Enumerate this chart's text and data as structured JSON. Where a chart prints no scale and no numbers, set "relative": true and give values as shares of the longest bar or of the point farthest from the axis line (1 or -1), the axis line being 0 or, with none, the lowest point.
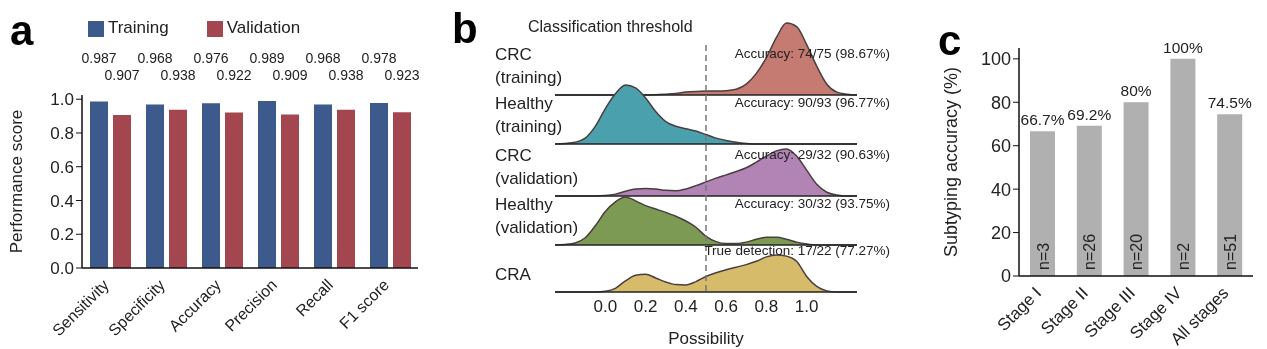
{
  "chart_data": [
    {
      "type": "bar",
      "title": "a",
      "categories": [
        "Sensitivity",
        "Specificity",
        "Accuracy",
        "Precision",
        "Recall",
        "F1 score"
      ],
      "series": [
        {
          "name": "Training",
          "color": "#3d5a8c",
          "values": [
            0.987,
            0.968,
            0.976,
            0.989,
            0.968,
            0.978
          ]
        },
        {
          "name": "Validation",
          "color": "#a3464f",
          "values": [
            0.907,
            0.938,
            0.922,
            0.909,
            0.938,
            0.923
          ]
        }
      ],
      "ylabel": "Performance score",
      "ylim": [
        0,
        1.025
      ],
      "yticks": [
        {
          "value": 0,
          "label": "0.0"
        },
        {
          "value": 0.2,
          "label": "0.2"
        },
        {
          "value": 0.4,
          "label": "0.4"
        },
        {
          "value": 0.6,
          "label": "0.6"
        },
        {
          "value": 0.8,
          "label": "0.8"
        },
        {
          "value": 1,
          "label": "1.0"
        }
      ],
      "data_labels": true,
      "legend": "top"
    },
    {
      "type": "area",
      "title": "b",
      "ylabel": "CRC (training)",
      "relative": true,
      "xlim": [
        -0.25,
        1.25
      ],
      "tick_labels": false,
      "annotations": [
        "Accuracy: 74/75 (98.67%)"
      ],
      "x": [
        -0.25,
        -0.2,
        -0.15,
        -0.1,
        -0.05,
        0,
        0.05,
        0.1,
        0.15,
        0.2,
        0.25,
        0.3,
        0.35,
        0.4,
        0.45,
        0.5,
        0.55,
        0.6,
        0.65,
        0.7,
        0.75,
        0.8,
        0.85,
        0.9,
        0.95,
        1,
        1.05,
        1.1,
        1.15,
        1.2,
        1.25
      ],
      "series": [
        {
          "color": "#c67b72",
          "values": [
            0,
            0,
            0,
            0,
            0,
            0,
            0,
            0,
            0,
            0,
            0.005,
            0.01,
            0.02,
            0.04,
            0.05,
            0.055,
            0.055,
            0.06,
            0.08,
            0.15,
            0.3,
            0.52,
            0.8,
            1,
            0.95,
            0.7,
            0.4,
            0.15,
            0.04,
            0.01,
            0
          ]
        }
      ]
    },
    {
      "type": "area",
      "ylabel": "Healthy (training)",
      "relative": true,
      "xlim": [
        -0.25,
        1.25
      ],
      "tick_labels": false,
      "annotations": [
        "Accuracy: 90/93 (96.77%)"
      ],
      "x": [
        -0.25,
        -0.2,
        -0.15,
        -0.1,
        -0.05,
        0,
        0.05,
        0.1,
        0.15,
        0.2,
        0.25,
        0.3,
        0.35,
        0.4,
        0.45,
        0.5,
        0.55,
        0.6,
        0.65,
        0.7,
        0.75,
        0.8,
        0.85,
        0.9,
        0.95,
        1,
        1.05,
        1.1,
        1.15,
        1.2,
        1.25
      ],
      "series": [
        {
          "color": "#4aa0ad",
          "values": [
            0,
            0.01,
            0.03,
            0.1,
            0.3,
            0.6,
            0.85,
            1,
            0.95,
            0.78,
            0.55,
            0.38,
            0.3,
            0.26,
            0.22,
            0.16,
            0.1,
            0.06,
            0.03,
            0.01,
            0,
            0,
            0,
            0,
            0,
            0,
            0,
            0,
            0,
            0,
            0
          ]
        }
      ]
    },
    {
      "type": "area",
      "ylabel": "CRC (validation)",
      "relative": true,
      "xlim": [
        -0.25,
        1.25
      ],
      "tick_labels": false,
      "annotations": [
        "Accuracy: 29/32 (90.63%)"
      ],
      "x": [
        -0.25,
        -0.2,
        -0.15,
        -0.1,
        -0.05,
        0,
        0.05,
        0.1,
        0.15,
        0.2,
        0.25,
        0.3,
        0.35,
        0.4,
        0.45,
        0.5,
        0.55,
        0.6,
        0.65,
        0.7,
        0.75,
        0.8,
        0.85,
        0.9,
        0.95,
        1,
        1.05,
        1.1,
        1.15,
        1.2,
        1.25
      ],
      "series": [
        {
          "color": "#b184b5",
          "values": [
            0,
            0,
            0,
            0,
            0,
            0.01,
            0.04,
            0.1,
            0.15,
            0.16,
            0.15,
            0.12,
            0.11,
            0.15,
            0.22,
            0.3,
            0.38,
            0.45,
            0.52,
            0.6,
            0.72,
            0.85,
            0.96,
            1,
            0.85,
            0.55,
            0.25,
            0.08,
            0.02,
            0,
            0
          ]
        }
      ]
    },
    {
      "type": "area",
      "ylabel": "Healthy (validation)",
      "relative": true,
      "xlim": [
        -0.25,
        1.25
      ],
      "tick_labels": false,
      "annotations": [
        "Accuracy: 30/32 (93.75%)"
      ],
      "x": [
        -0.25,
        -0.2,
        -0.15,
        -0.1,
        -0.05,
        0,
        0.05,
        0.1,
        0.15,
        0.2,
        0.25,
        0.3,
        0.35,
        0.4,
        0.45,
        0.5,
        0.55,
        0.6,
        0.65,
        0.7,
        0.75,
        0.8,
        0.85,
        0.9,
        0.95,
        1,
        1.05,
        1.1,
        1.15,
        1.2,
        1.25
      ],
      "series": [
        {
          "color": "#7d9a55",
          "values": [
            0,
            0.01,
            0.04,
            0.15,
            0.4,
            0.7,
            0.9,
            1,
            0.92,
            0.82,
            0.75,
            0.68,
            0.6,
            0.5,
            0.37,
            0.18,
            0.07,
            0.03,
            0.03,
            0.06,
            0.12,
            0.16,
            0.16,
            0.12,
            0.06,
            0.02,
            0,
            0,
            0,
            0,
            0
          ]
        }
      ]
    },
    {
      "type": "area",
      "ylabel": "CRA",
      "relative": true,
      "xlim": [
        -0.25,
        1.25
      ],
      "tick_labels": "x",
      "xlabel": "Possibility",
      "annotations": [
        "True detection: 17/22 (77.27%)"
      ],
      "xticks": [
        {
          "value": 0,
          "label": "0.0"
        },
        {
          "value": 0.2,
          "label": "0.2"
        },
        {
          "value": 0.4,
          "label": "0.4"
        },
        {
          "value": 0.6,
          "label": "0.6"
        },
        {
          "value": 0.8,
          "label": "0.8"
        },
        {
          "value": 1,
          "label": "1.0"
        }
      ],
      "ref_lines": [
        {
          "axis": "x",
          "value": 0.5,
          "label": "Classification threshold",
          "line_style": "dashed"
        }
      ],
      "x": [
        -0.25,
        -0.2,
        -0.15,
        -0.1,
        -0.05,
        0,
        0.05,
        0.1,
        0.15,
        0.2,
        0.25,
        0.3,
        0.35,
        0.4,
        0.45,
        0.5,
        0.55,
        0.6,
        0.65,
        0.7,
        0.75,
        0.8,
        0.85,
        0.9,
        0.95,
        1,
        1.05,
        1.1,
        1.15,
        1.2,
        1.25
      ],
      "series": [
        {
          "color": "#d6bb6a",
          "values": [
            0,
            0,
            0,
            0,
            0,
            0.02,
            0.1,
            0.3,
            0.45,
            0.48,
            0.38,
            0.27,
            0.2,
            0.19,
            0.28,
            0.42,
            0.52,
            0.6,
            0.67,
            0.74,
            0.83,
            0.95,
            1,
            0.97,
            0.83,
            0.42,
            0.15,
            0.03,
            0,
            0,
            0
          ]
        }
      ]
    },
    {
      "type": "bar",
      "title": "c",
      "categories": [
        "Stage I",
        "Stage II",
        "Stage III",
        "Stage IV",
        "All stages"
      ],
      "values": [
        66.7,
        69.2,
        80,
        100,
        74.5
      ],
      "color": "#b0b0b0",
      "value_labels": [
        "66.7%",
        "69.2%",
        "80%",
        "100%",
        "74.5%"
      ],
      "ylabel": "Subtyping accuracy (%)",
      "ylim": [
        0,
        105
      ],
      "yticks": [
        0,
        20,
        40,
        60,
        80,
        100
      ],
      "annotations": [
        "n=3",
        "n=26",
        "n=20",
        "n=2",
        "n=51"
      ]
    }
  ]
}
